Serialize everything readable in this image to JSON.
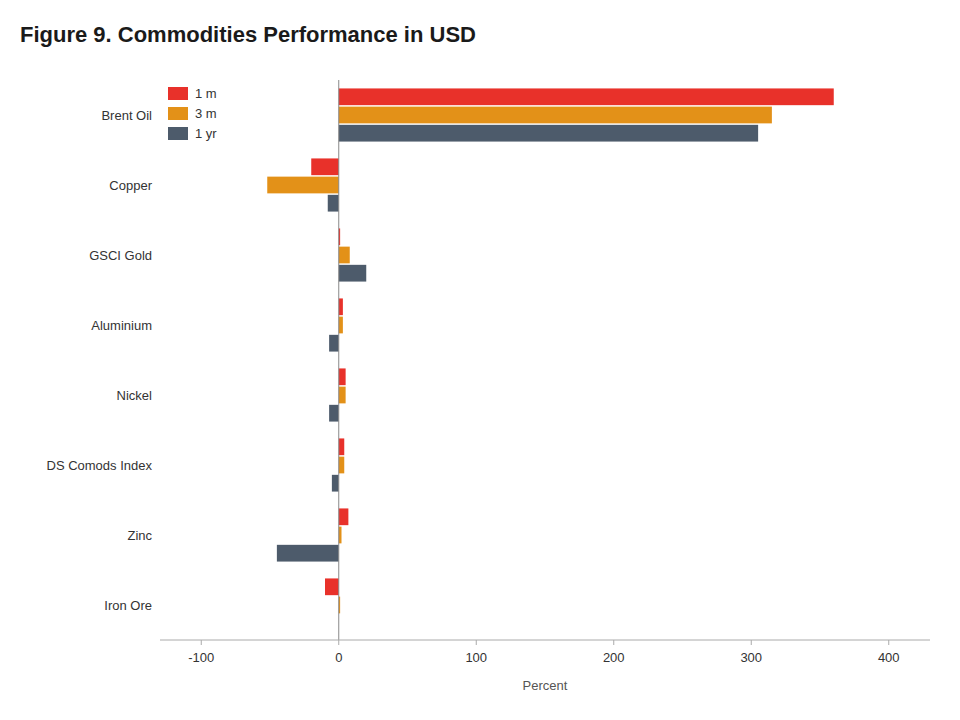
{
  "chart_data": {
    "type": "bar",
    "orientation": "horizontal",
    "title": "Figure 9. Commodities Performance in USD",
    "categories": [
      "Brent Oil",
      "Copper",
      "GSCI Gold",
      "Aluminium",
      "Nickel",
      "DS Comods Index",
      "Zinc",
      "Iron Ore"
    ],
    "series": [
      {
        "name": "1 m",
        "color": "#e8312a",
        "values": [
          360,
          -20,
          1,
          3,
          5,
          4,
          7,
          -10
        ]
      },
      {
        "name": "3 m",
        "color": "#e39118",
        "values": [
          315,
          -52,
          8,
          3,
          5,
          4,
          2,
          1
        ]
      },
      {
        "name": "1 yr",
        "color": "#4d5b6b",
        "values": [
          305,
          -8,
          20,
          -7,
          -7,
          -5,
          -45,
          0
        ]
      }
    ],
    "x_label": "Percent",
    "xlim": [
      -130,
      430
    ],
    "xticks": [
      -100,
      0,
      100,
      200,
      300,
      400
    ],
    "grid": false,
    "legend": "upper left"
  }
}
